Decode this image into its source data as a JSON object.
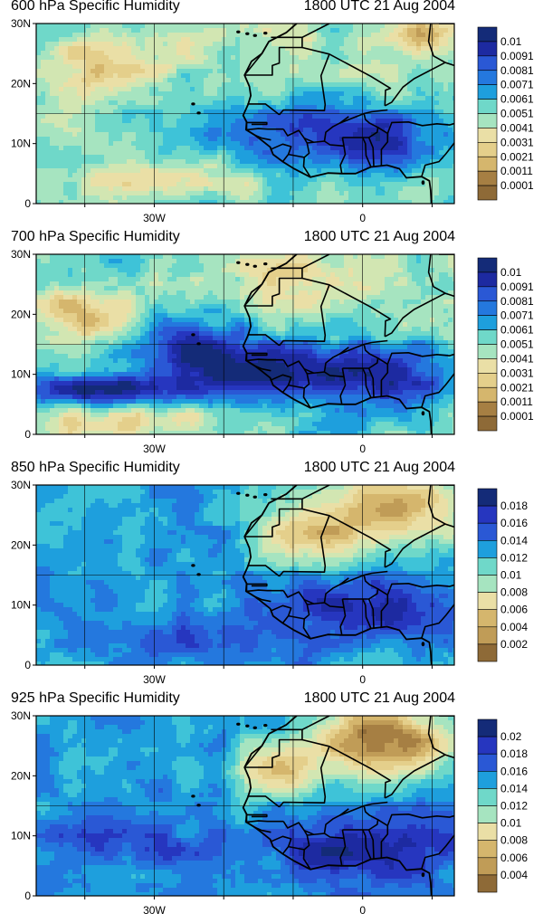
{
  "palette": [
    "#8e6a37",
    "#a67f43",
    "#c09c57",
    "#d5b66d",
    "#e4cf8b",
    "#eadfa6",
    "#d2e6b2",
    "#a6e4c0",
    "#6fd8c9",
    "#3ec3d8",
    "#1e9fdd",
    "#2478de",
    "#2a58d5",
    "#2636bf",
    "#1d2aa1",
    "#142b78"
  ],
  "lat_ticks": [
    "30N",
    "20N",
    "10N",
    "0"
  ],
  "lon_ticks": [
    "30W",
    "0"
  ],
  "panels": [
    {
      "title_left": "600 hPa Specific Humidity",
      "title_right": "1800 UTC 21 Aug 2004",
      "colorbar_labels": [
        "0.01",
        "0.0091",
        "0.0081",
        "0.0071",
        "0.0061",
        "0.0051",
        "0.0041",
        "0.0031",
        "0.0021",
        "0.0011",
        "0.0001"
      ],
      "scheme": "p600"
    },
    {
      "title_left": "700 hPa Specific Humidity",
      "title_right": "1800 UTC 21 Aug 2004",
      "colorbar_labels": [
        "0.01",
        "0.0091",
        "0.0081",
        "0.0071",
        "0.0061",
        "0.0051",
        "0.0041",
        "0.0031",
        "0.0021",
        "0.0011",
        "0.0001"
      ],
      "scheme": "p700"
    },
    {
      "title_left": "850 hPa Specific Humidity",
      "title_right": "1800 UTC 21 Aug 2004",
      "colorbar_labels": [
        "0.018",
        "0.016",
        "0.014",
        "0.012",
        "0.01",
        "0.008",
        "0.006",
        "0.004",
        "0.002"
      ],
      "scheme": "p850"
    },
    {
      "title_left": "925 hPa Specific Humidity",
      "title_right": "1800 UTC 21 Aug 2004",
      "colorbar_labels": [
        "0.02",
        "0.018",
        "0.016",
        "0.014",
        "0.012",
        "0.01",
        "0.008",
        "0.006",
        "0.004"
      ],
      "scheme": "p925"
    }
  ]
}
